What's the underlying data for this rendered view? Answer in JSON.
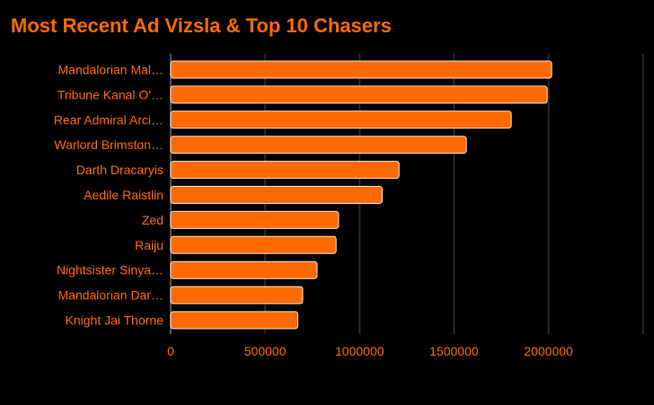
{
  "chart_data": {
    "type": "bar",
    "orientation": "horizontal",
    "title": "Most Recent Ad Vizsla & Top 10 Chasers",
    "categories": [
      "Mandalorian Mal…",
      "Tribune Kanal O'…",
      "Rear Admiral Arci…",
      "Warlord Brimston…",
      "Darth Dracaryis",
      "Aedile Raistlin",
      "Zed",
      "Raiju",
      "Nightsister Sinya…",
      "Mandalorian Dar…",
      "Knight Jai Thorne"
    ],
    "values": [
      2017000,
      1993000,
      1803000,
      1565000,
      1209000,
      1120000,
      889000,
      876000,
      775000,
      699000,
      673000
    ],
    "xlim": [
      0,
      2500000
    ],
    "xticks": [
      0,
      500000,
      1000000,
      1500000,
      2000000
    ],
    "xtick_labels": [
      "0",
      "500000",
      "1000000",
      "1500000",
      "2000000"
    ],
    "grid": true,
    "colors": {
      "bar": "#ff6a00",
      "bar_border": "#f0e6dc",
      "text": "#ff6a00",
      "grid": "#2a2a2a",
      "background": "#000000"
    }
  }
}
